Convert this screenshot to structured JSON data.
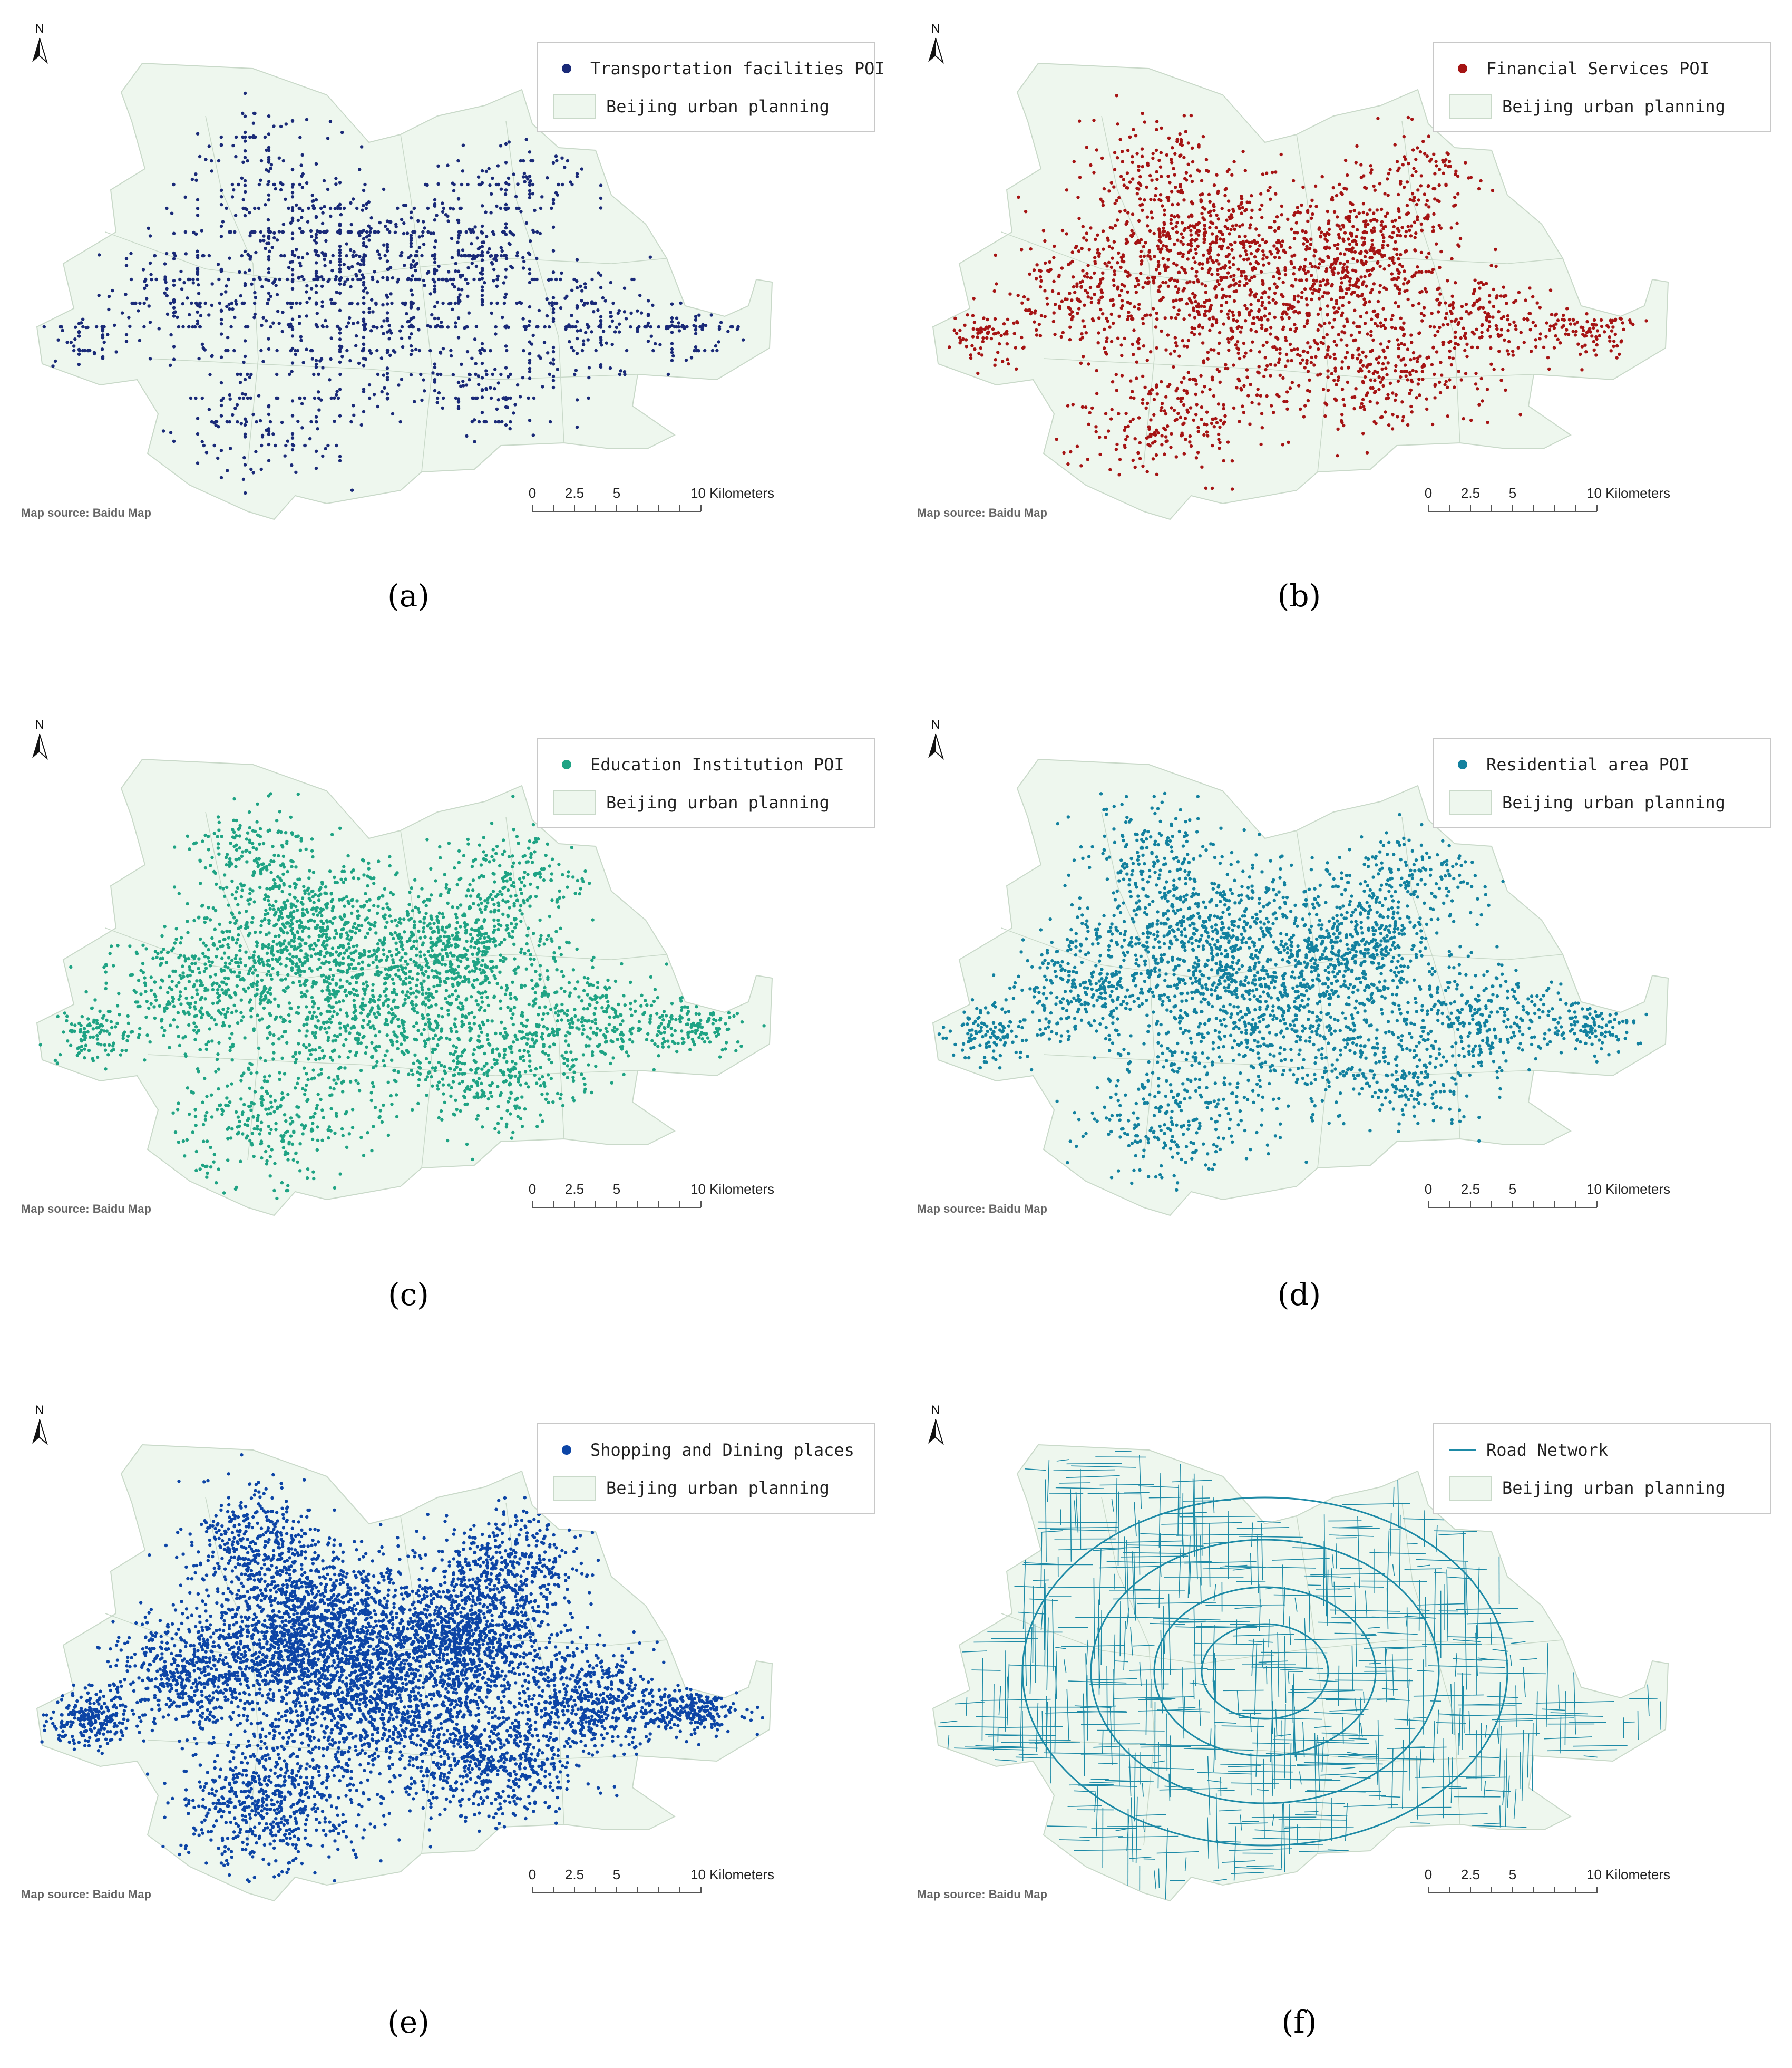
{
  "colors": {
    "map_fill": "#eef7ee",
    "map_stroke": "#c9d9c9",
    "legend_border": "#c8c8c8"
  },
  "map_source_label": "Map source: Baidu Map",
  "north_label": "N",
  "planning_label": "Beijing urban planning",
  "scale": {
    "ticks": [
      "0",
      "2.5",
      "5",
      "10 Kilometers"
    ]
  },
  "panels": [
    {
      "id": "a",
      "caption": "(a)",
      "legend_label": "Transportation facilities POI",
      "symbol": "point",
      "color": "#1a2a78",
      "density": 1800,
      "seed": 11
    },
    {
      "id": "b",
      "caption": "(b)",
      "legend_label": "Financial Services POI",
      "symbol": "point",
      "color": "#a51414",
      "density": 2600,
      "seed": 23
    },
    {
      "id": "c",
      "caption": "(c)",
      "legend_label": "Education Institution POI",
      "symbol": "point",
      "color": "#1fa384",
      "density": 3600,
      "seed": 37
    },
    {
      "id": "d",
      "caption": "(d)",
      "legend_label": "Residential area POI",
      "symbol": "point",
      "color": "#13819f",
      "density": 3300,
      "seed": 41
    },
    {
      "id": "e",
      "caption": "(e)",
      "legend_label": "Shopping and Dining places",
      "symbol": "point",
      "color": "#0d45a6",
      "density": 7000,
      "seed": 53
    },
    {
      "id": "f",
      "caption": "(f)",
      "legend_label": "Road Network",
      "symbol": "line",
      "color": "#1d8aa6",
      "density": 650,
      "seed": 67
    }
  ]
}
